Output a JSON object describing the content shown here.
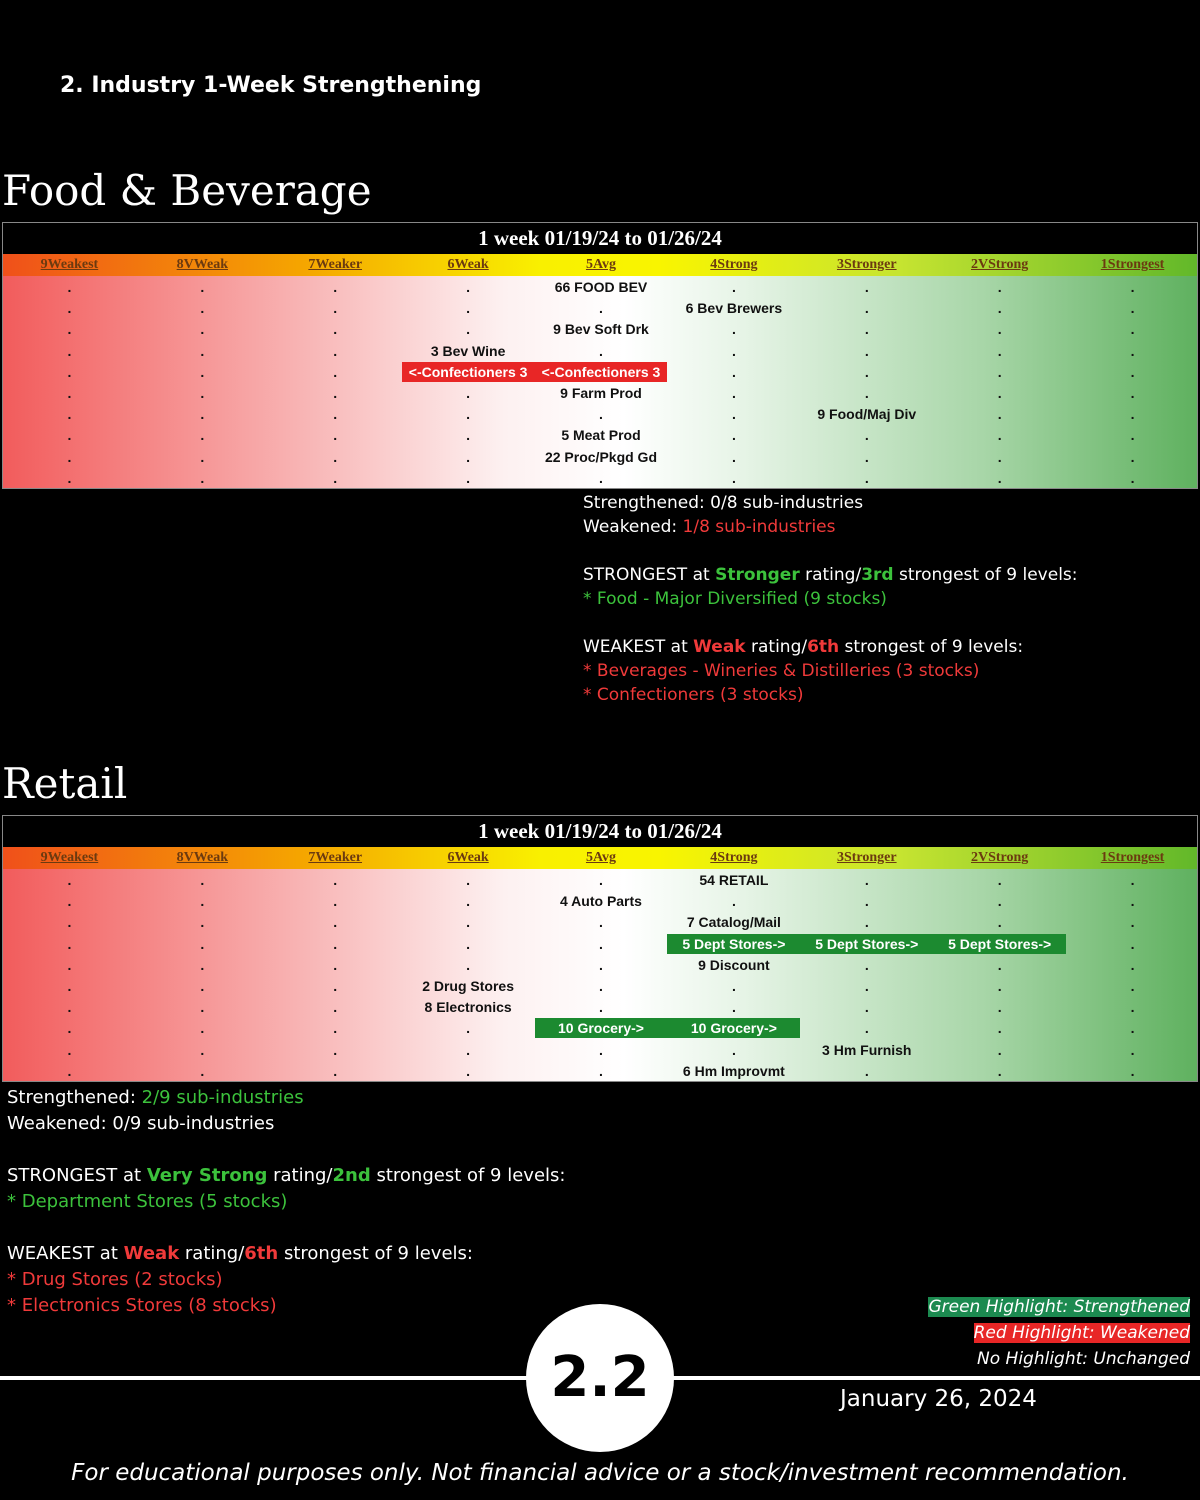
{
  "header": {
    "title": "2. Industry 1-Week Strengthening"
  },
  "sections": [
    {
      "name": "Food & Beverage",
      "table": {
        "title": "1 week 01/19/24 to 01/26/24",
        "columns": [
          "9Weakest",
          "8VWeak",
          "7Weaker",
          "6Weak",
          "5Avg",
          "4Strong",
          "3Stronger",
          "2VStrong",
          "1Strongest"
        ],
        "rows": [
          [
            ".",
            ".",
            ".",
            ".",
            "66 FOOD BEV",
            ".",
            ".",
            ".",
            "."
          ],
          [
            ".",
            ".",
            ".",
            ".",
            ".",
            "6 Bev Brewers",
            ".",
            ".",
            "."
          ],
          [
            ".",
            ".",
            ".",
            ".",
            "9 Bev Soft Drk",
            ".",
            ".",
            ".",
            "."
          ],
          [
            ".",
            ".",
            ".",
            "3 Bev Wine",
            ".",
            ".",
            ".",
            ".",
            "."
          ],
          [
            ".",
            ".",
            ".",
            {
              "text": "<-Confectioners 3",
              "highlight": "red"
            },
            {
              "text": "<-Confectioners 3",
              "highlight": "red"
            },
            ".",
            ".",
            ".",
            "."
          ],
          [
            ".",
            ".",
            ".",
            ".",
            "9 Farm Prod",
            ".",
            ".",
            ".",
            "."
          ],
          [
            ".",
            ".",
            ".",
            ".",
            ".",
            ".",
            "9 Food/Maj Div",
            ".",
            "."
          ],
          [
            ".",
            ".",
            ".",
            ".",
            "5 Meat Prod",
            ".",
            ".",
            ".",
            "."
          ],
          [
            ".",
            ".",
            ".",
            ".",
            "22 Proc/Pkgd Gd",
            ".",
            ".",
            ".",
            "."
          ],
          [
            ".",
            ".",
            ".",
            ".",
            ".",
            ".",
            ".",
            ".",
            "."
          ]
        ]
      },
      "summary": [
        [
          [
            {
              "text": "Strengthened: 0/8 sub-industries"
            }
          ],
          [
            {
              "text": "Weakened: "
            },
            {
              "text": "1/8 sub-industries",
              "color": "red"
            }
          ]
        ],
        [
          [
            {
              "text": "STRONGEST at "
            },
            {
              "text": "Stronger",
              "color": "green",
              "bold": true
            },
            {
              "text": " rating/"
            },
            {
              "text": "3rd",
              "color": "green",
              "bold": true
            },
            {
              "text": " strongest of 9 levels:"
            }
          ],
          [
            {
              "text": "* Food - Major Diversified (9 stocks)",
              "color": "green"
            }
          ]
        ],
        [
          [
            {
              "text": "WEAKEST at "
            },
            {
              "text": "Weak",
              "color": "red",
              "bold": true
            },
            {
              "text": " rating/"
            },
            {
              "text": "6th",
              "color": "red",
              "bold": true
            },
            {
              "text": " strongest of 9 levels:"
            }
          ],
          [
            {
              "text": "* Beverages - Wineries & Distilleries (3 stocks)",
              "color": "red"
            }
          ],
          [
            {
              "text": "* Confectioners (3 stocks)",
              "color": "red"
            }
          ]
        ]
      ]
    },
    {
      "name": "Retail",
      "table": {
        "title": "1 week 01/19/24 to 01/26/24",
        "columns": [
          "9Weakest",
          "8VWeak",
          "7Weaker",
          "6Weak",
          "5Avg",
          "4Strong",
          "3Stronger",
          "2VStrong",
          "1Strongest"
        ],
        "rows": [
          [
            ".",
            ".",
            ".",
            ".",
            ".",
            "54 RETAIL",
            ".",
            ".",
            "."
          ],
          [
            ".",
            ".",
            ".",
            ".",
            "4 Auto Parts",
            ".",
            ".",
            ".",
            "."
          ],
          [
            ".",
            ".",
            ".",
            ".",
            ".",
            "7 Catalog/Mail",
            ".",
            ".",
            "."
          ],
          [
            ".",
            ".",
            ".",
            ".",
            ".",
            {
              "text": "5 Dept Stores->",
              "highlight": "green"
            },
            {
              "text": "5 Dept Stores->",
              "highlight": "green"
            },
            {
              "text": "5 Dept Stores->",
              "highlight": "green"
            },
            "."
          ],
          [
            ".",
            ".",
            ".",
            ".",
            ".",
            "9 Discount",
            ".",
            ".",
            "."
          ],
          [
            ".",
            ".",
            ".",
            "2 Drug Stores",
            ".",
            ".",
            ".",
            ".",
            "."
          ],
          [
            ".",
            ".",
            ".",
            "8 Electronics",
            ".",
            ".",
            ".",
            ".",
            "."
          ],
          [
            ".",
            ".",
            ".",
            ".",
            {
              "text": "10 Grocery->",
              "highlight": "green"
            },
            {
              "text": "10 Grocery->",
              "highlight": "green"
            },
            ".",
            ".",
            "."
          ],
          [
            ".",
            ".",
            ".",
            ".",
            ".",
            ".",
            "3 Hm Furnish",
            ".",
            "."
          ],
          [
            ".",
            ".",
            ".",
            ".",
            ".",
            "6 Hm Improvmt",
            ".",
            ".",
            "."
          ]
        ]
      },
      "summary": [
        [
          [
            {
              "text": "Strengthened: "
            },
            {
              "text": "2/9 sub-industries",
              "color": "green"
            }
          ],
          [
            {
              "text": "Weakened: 0/9 sub-industries"
            }
          ]
        ],
        [
          [
            {
              "text": "STRONGEST at "
            },
            {
              "text": "Very Strong",
              "color": "green",
              "bold": true
            },
            {
              "text": " rating/"
            },
            {
              "text": "2nd",
              "color": "green",
              "bold": true
            },
            {
              "text": " strongest of 9 levels:"
            }
          ],
          [
            {
              "text": "* Department Stores (5 stocks)",
              "color": "green"
            }
          ]
        ],
        [
          [
            {
              "text": "WEAKEST at "
            },
            {
              "text": "Weak",
              "color": "red",
              "bold": true
            },
            {
              "text": " rating/"
            },
            {
              "text": "6th",
              "color": "red",
              "bold": true
            },
            {
              "text": " strongest of 9 levels:"
            }
          ],
          [
            {
              "text": "* Drug Stores (2 stocks)",
              "color": "red"
            }
          ],
          [
            {
              "text": "* Electronics Stores (8 stocks)",
              "color": "red"
            }
          ]
        ]
      ]
    }
  ],
  "legend": [
    {
      "text": "Green Highlight: Strengthened",
      "highlight": "green"
    },
    {
      "text": "Red Highlight: Weakened",
      "highlight": "red"
    },
    {
      "text": "No Highlight: Unchanged"
    }
  ],
  "page_number": "2.2",
  "date": "January 26, 2024",
  "disclaimer": "For educational purposes only. Not financial advice or a stock/investment recommendation."
}
